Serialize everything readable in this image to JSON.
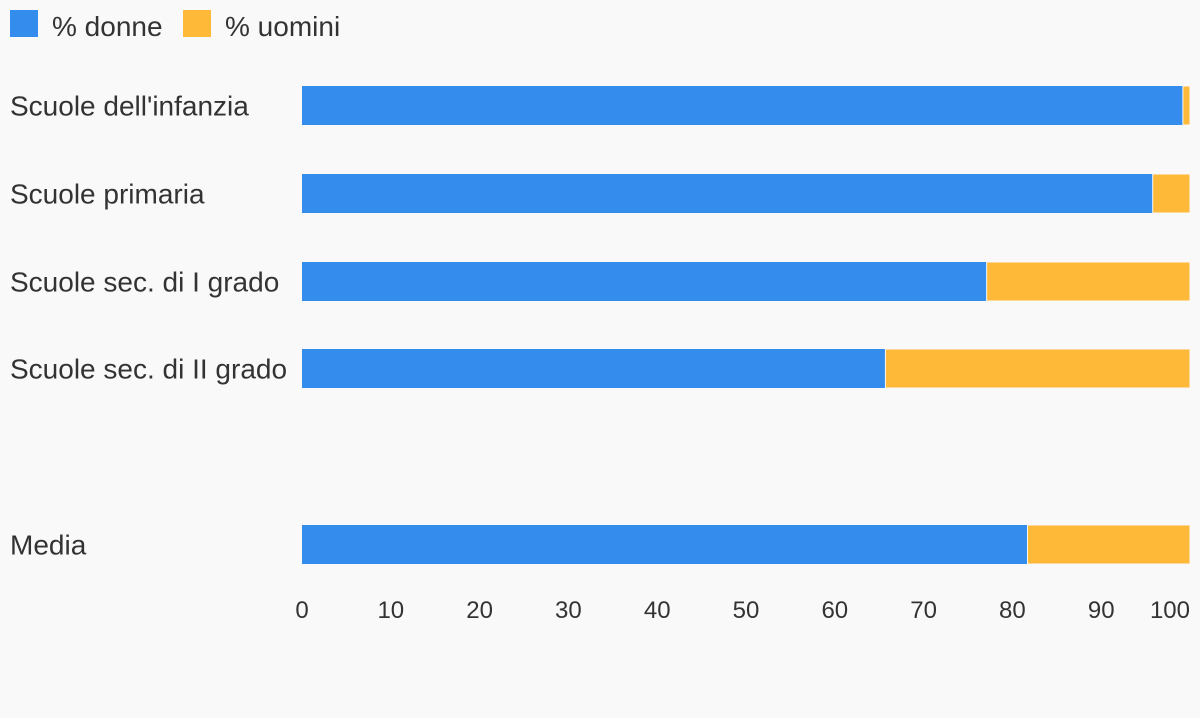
{
  "chart_data": {
    "type": "bar",
    "orientation": "horizontal",
    "stacked": true,
    "legend_position": "top-left",
    "grid": false,
    "categories": [
      "Scuole dell'infanzia",
      "Scuole primaria",
      "Scuole sec. di I grado",
      "Scuole sec. di II grado",
      "Media"
    ],
    "series": [
      {
        "name": "% donne",
        "color": "#348ced",
        "values": [
          99.2,
          95.8,
          77.1,
          65.7,
          81.7
        ]
      },
      {
        "name": "% uomini",
        "color": "#ffb938",
        "values": [
          0.8,
          4.2,
          22.9,
          34.3,
          18.3
        ]
      }
    ],
    "xlim": [
      0,
      100
    ],
    "xticks": [
      "0",
      "10",
      "20",
      "30",
      "40",
      "50",
      "60",
      "70",
      "80",
      "90",
      "100"
    ],
    "title": "",
    "xlabel": "",
    "ylabel": ""
  }
}
